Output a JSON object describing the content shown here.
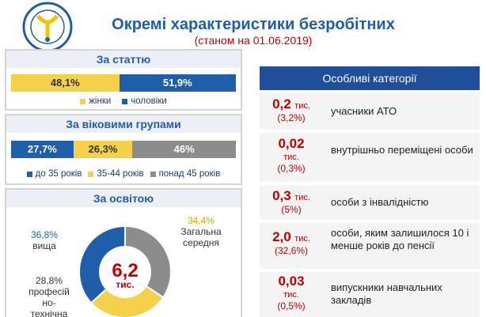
{
  "header": {
    "title": "Окремі характеристики безробітних",
    "subtitle": "(станом на 01.06.2019)"
  },
  "colors": {
    "blue": "#1f5ea8",
    "yellow": "#f5d04a",
    "gray": "#888888",
    "red": "#c00000"
  },
  "chart_data": [
    {
      "type": "bar",
      "title": "За статтю",
      "series": [
        {
          "name": "жінки",
          "value": 48.1,
          "label": "48,1%",
          "color": "#f5d04a"
        },
        {
          "name": "чоловіки",
          "value": 51.9,
          "label": "51,9%",
          "color": "#1f5ea8"
        }
      ]
    },
    {
      "type": "bar",
      "title": "За віковими групами",
      "series": [
        {
          "name": "до 35 років",
          "value": 27.7,
          "label": "27,7%",
          "color": "#1f5ea8"
        },
        {
          "name": "35-44 років",
          "value": 26.3,
          "label": "26,3%",
          "color": "#f5d04a"
        },
        {
          "name": "понад 45 років",
          "value": 46,
          "label": "46%",
          "color": "#8c8c8c"
        }
      ]
    },
    {
      "type": "pie",
      "title": "За освітою",
      "center_value": "6,2",
      "center_unit": "тис.",
      "series": [
        {
          "name": "Загальна середня",
          "value": 34.4,
          "label": "34,4%",
          "color": "#8c8c8c"
        },
        {
          "name": "професійно-технічна",
          "value": 28.8,
          "label": "28,8%",
          "color": "#f5d04a"
        },
        {
          "name": "вища",
          "value": 36.8,
          "label": "36,8%",
          "color": "#1f5ea8"
        }
      ]
    }
  ],
  "donut_labels": {
    "higher_pct": "36,8%",
    "higher_name": "вища",
    "general_pct": "34,4%",
    "general_line1": "Загальна",
    "general_line2": "середня",
    "voc_pct": "28,8%",
    "voc_line1": "професій",
    "voc_line2": "но-",
    "voc_line3": "технічна"
  },
  "categories": {
    "header": "Особливі категорії",
    "rows": [
      {
        "value": "0,2",
        "unit": "тис.",
        "pct": "(3,2%)",
        "text": "учасники АТО"
      },
      {
        "value": "0,02",
        "unit": "тис.",
        "pct": "(0,3%)",
        "text": "внутрішньо переміщені особи"
      },
      {
        "value": "0,3",
        "unit": "тис.",
        "pct": "(5%)",
        "text": "особи з інвалідністю"
      },
      {
        "value": "2,0",
        "unit": "тис.",
        "pct": "(32,6%)",
        "text": "особи, яким залишилося 10 і менше років до пенсії"
      },
      {
        "value": "0,03",
        "unit": "тис.",
        "pct": "(0,5%)",
        "text": "випускники навчальних закладів"
      }
    ]
  }
}
